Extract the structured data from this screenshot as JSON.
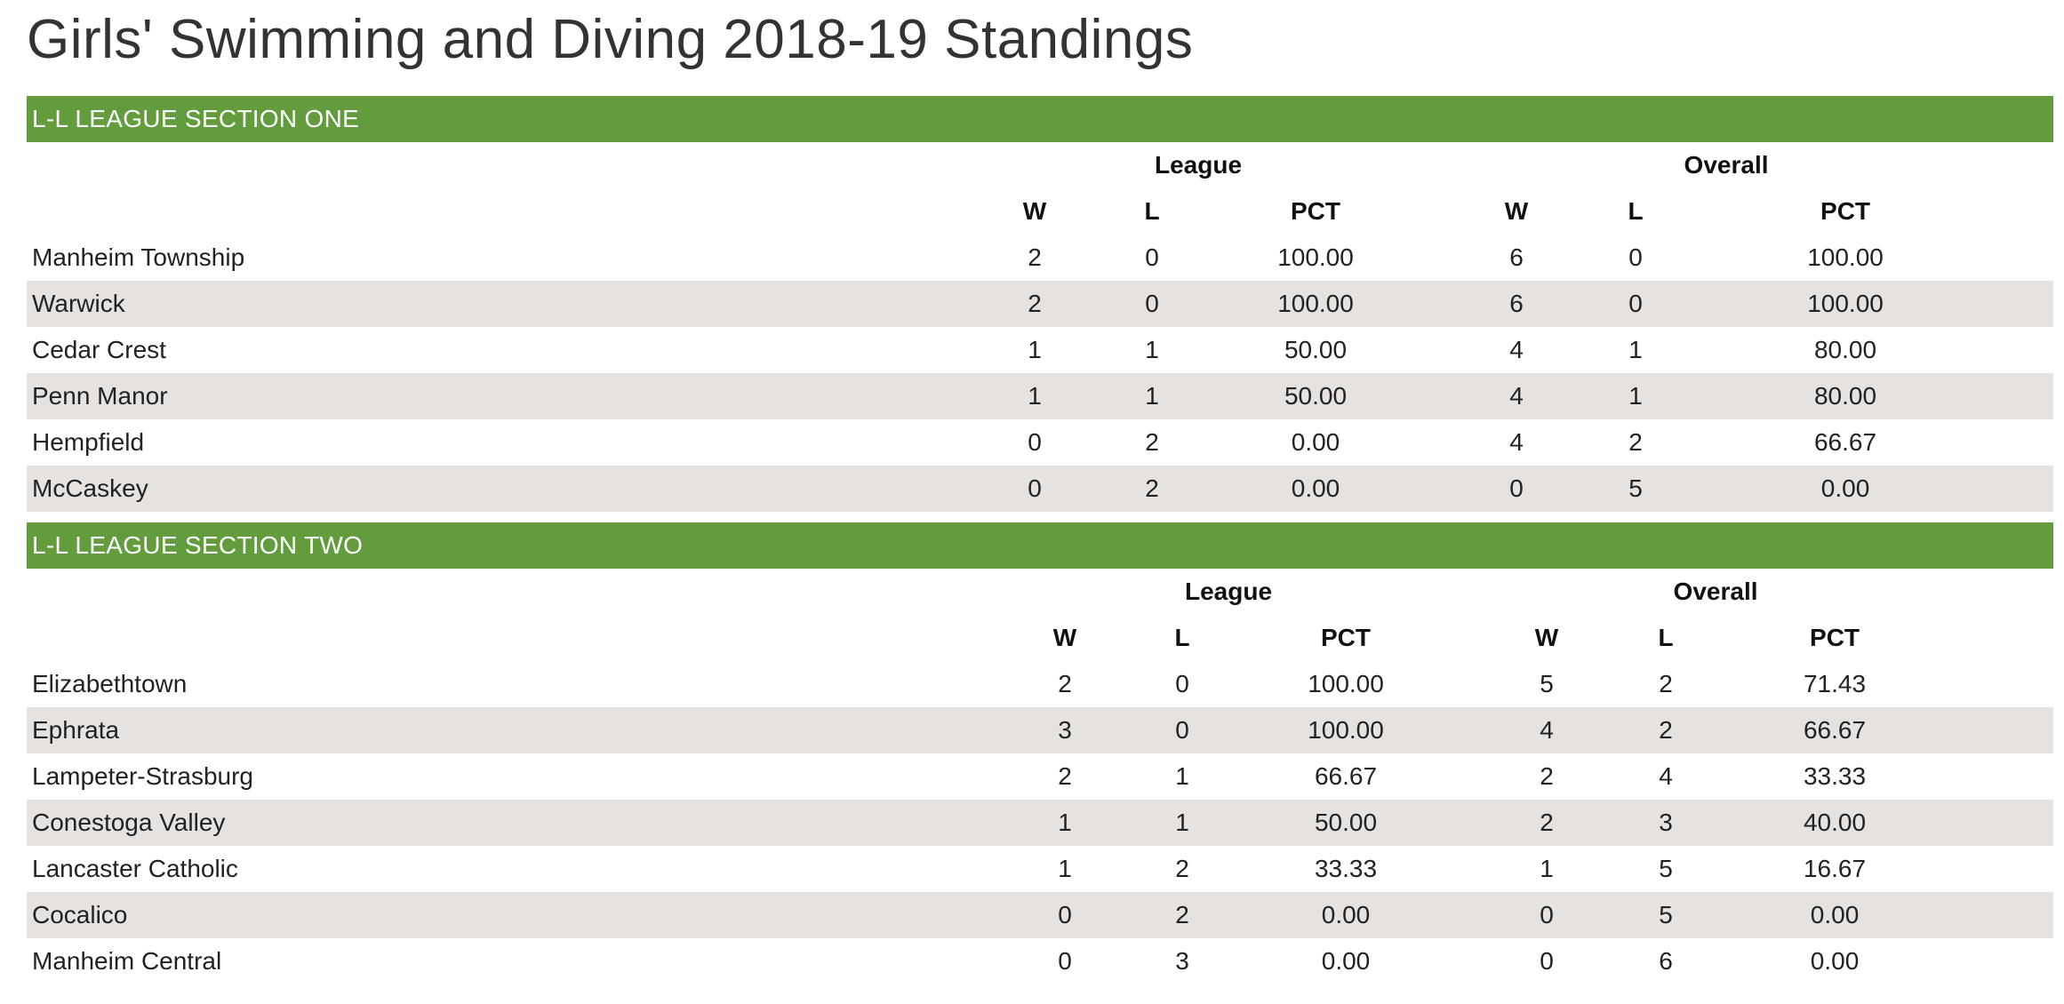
{
  "page": {
    "title": "Girls' Swimming and Diving 2018-19 Standings"
  },
  "colors": {
    "section_bar": "#629c3c",
    "shaded_row": "#e5e2df"
  },
  "sections": [
    {
      "name": "L-L LEAGUE SECTION ONE",
      "group_headers": {
        "league": "League",
        "overall": "Overall"
      },
      "column_headers": {
        "w": "W",
        "l": "L",
        "pct": "PCT"
      },
      "rows": [
        {
          "team": "Manheim Township",
          "lw": "2",
          "ll": "0",
          "lpct": "100.00",
          "ow": "6",
          "ol": "0",
          "opct": "100.00"
        },
        {
          "team": "Warwick",
          "lw": "2",
          "ll": "0",
          "lpct": "100.00",
          "ow": "6",
          "ol": "0",
          "opct": "100.00"
        },
        {
          "team": "Cedar Crest",
          "lw": "1",
          "ll": "1",
          "lpct": "50.00",
          "ow": "4",
          "ol": "1",
          "opct": "80.00"
        },
        {
          "team": "Penn Manor",
          "lw": "1",
          "ll": "1",
          "lpct": "50.00",
          "ow": "4",
          "ol": "1",
          "opct": "80.00"
        },
        {
          "team": "Hempfield",
          "lw": "0",
          "ll": "2",
          "lpct": "0.00",
          "ow": "4",
          "ol": "2",
          "opct": "66.67"
        },
        {
          "team": "McCaskey",
          "lw": "0",
          "ll": "2",
          "lpct": "0.00",
          "ow": "0",
          "ol": "5",
          "opct": "0.00"
        }
      ]
    },
    {
      "name": "L-L LEAGUE SECTION TWO",
      "group_headers": {
        "league": "League",
        "overall": "Overall"
      },
      "column_headers": {
        "w": "W",
        "l": "L",
        "pct": "PCT"
      },
      "rows": [
        {
          "team": "Elizabethtown",
          "lw": "2",
          "ll": "0",
          "lpct": "100.00",
          "ow": "5",
          "ol": "2",
          "opct": "71.43"
        },
        {
          "team": "Ephrata",
          "lw": "3",
          "ll": "0",
          "lpct": "100.00",
          "ow": "4",
          "ol": "2",
          "opct": "66.67"
        },
        {
          "team": "Lampeter-Strasburg",
          "lw": "2",
          "ll": "1",
          "lpct": "66.67",
          "ow": "2",
          "ol": "4",
          "opct": "33.33"
        },
        {
          "team": "Conestoga Valley",
          "lw": "1",
          "ll": "1",
          "lpct": "50.00",
          "ow": "2",
          "ol": "3",
          "opct": "40.00"
        },
        {
          "team": "Lancaster Catholic",
          "lw": "1",
          "ll": "2",
          "lpct": "33.33",
          "ow": "1",
          "ol": "5",
          "opct": "16.67"
        },
        {
          "team": "Cocalico",
          "lw": "0",
          "ll": "2",
          "lpct": "0.00",
          "ow": "0",
          "ol": "5",
          "opct": "0.00"
        },
        {
          "team": "Manheim Central",
          "lw": "0",
          "ll": "3",
          "lpct": "0.00",
          "ow": "0",
          "ol": "6",
          "opct": "0.00"
        }
      ]
    }
  ]
}
